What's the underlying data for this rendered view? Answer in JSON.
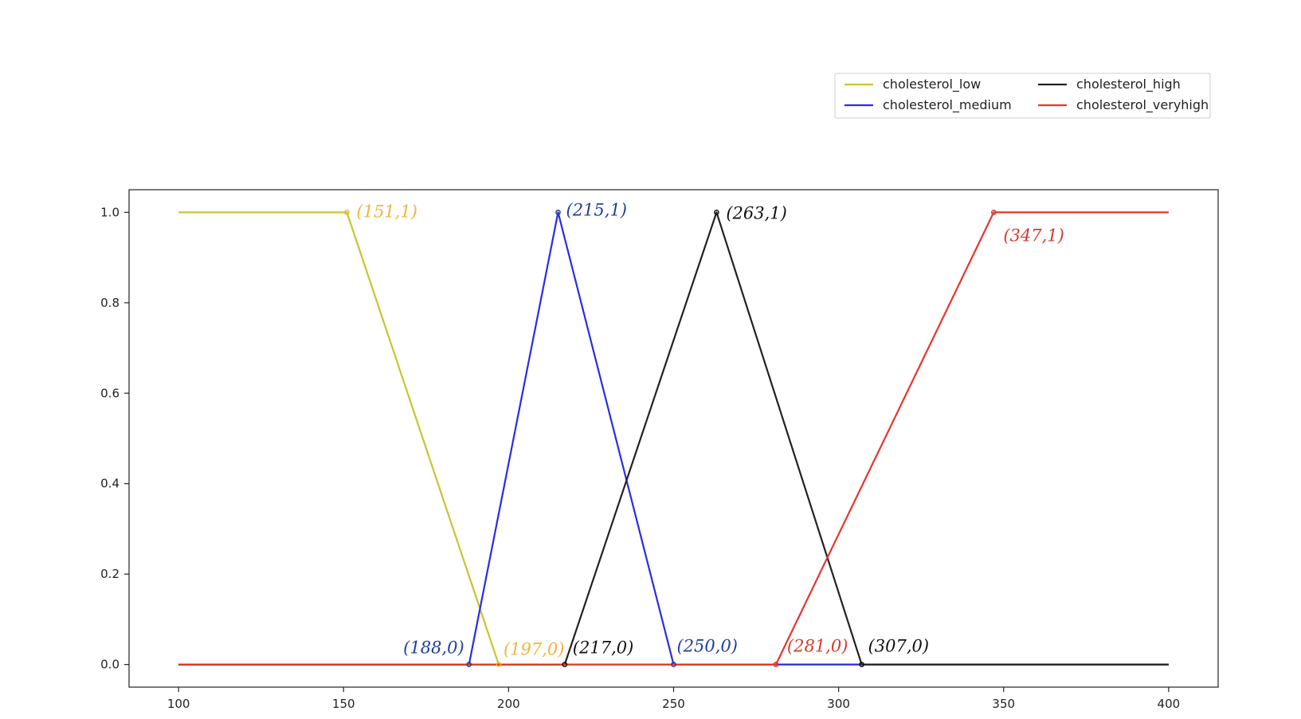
{
  "chart_data": {
    "type": "line",
    "title": "",
    "xlabel": "",
    "ylabel": "",
    "xlim": [
      85,
      415
    ],
    "ylim": [
      -0.05,
      1.05
    ],
    "xticks": [
      100,
      150,
      200,
      250,
      300,
      350,
      400
    ],
    "yticks": [
      0.0,
      0.2,
      0.4,
      0.6,
      0.8,
      1.0
    ],
    "xtick_labels": [
      "100",
      "150",
      "200",
      "250",
      "300",
      "350",
      "400"
    ],
    "ytick_labels": [
      "0.0",
      "0.2",
      "0.4",
      "0.6",
      "0.8",
      "1.0"
    ],
    "grid": false,
    "legend_position": "top-right",
    "legend_columns": 2,
    "series": [
      {
        "name": "cholesterol_low",
        "color": "#c8c431",
        "x": [
          100,
          151,
          197,
          400
        ],
        "y": [
          1,
          1,
          0,
          0
        ]
      },
      {
        "name": "cholesterol_medium",
        "color": "#2b2be6",
        "x": [
          100,
          188,
          215,
          250,
          400
        ],
        "y": [
          0,
          0,
          1,
          0,
          0
        ]
      },
      {
        "name": "cholesterol_high",
        "color": "#222222",
        "x": [
          100,
          217,
          263,
          307,
          400
        ],
        "y": [
          0,
          0,
          1,
          0,
          0
        ]
      },
      {
        "name": "cholesterol_veryhigh",
        "color": "#e8352b",
        "x": [
          100,
          281,
          347,
          400
        ],
        "y": [
          0,
          0,
          1,
          1
        ]
      }
    ],
    "annotations": [
      {
        "text": "(151,1)",
        "x": 151,
        "y": 1,
        "color": "#f2b33d"
      },
      {
        "text": "(215,1)",
        "x": 215,
        "y": 1,
        "color": "#1f3f9a"
      },
      {
        "text": "(263,1)",
        "x": 263,
        "y": 1,
        "color": "#111111"
      },
      {
        "text": "(347,1)",
        "x": 347,
        "y": 1,
        "color": "#d23a2c"
      },
      {
        "text": "(188,0)",
        "x": 188,
        "y": 0,
        "color": "#1f3f9a"
      },
      {
        "text": "(197,0)",
        "x": 197,
        "y": 0,
        "color": "#f2b33d"
      },
      {
        "text": "(217,0)",
        "x": 217,
        "y": 0,
        "color": "#111111"
      },
      {
        "text": "(250,0)",
        "x": 250,
        "y": 0,
        "color": "#1f3f9a"
      },
      {
        "text": "(281,0)",
        "x": 281,
        "y": 0,
        "color": "#d23a2c"
      },
      {
        "text": "(307,0)",
        "x": 307,
        "y": 0,
        "color": "#111111"
      }
    ]
  }
}
